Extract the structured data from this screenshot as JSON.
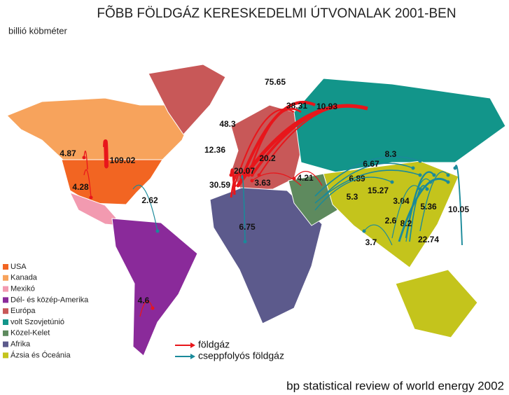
{
  "title": "FÕBB FÖLDGÁZ KERESKEDELMI ÚTVONALAK 2001-BEN",
  "unit": "billió köbméter",
  "source": "bp statistical review of world energy 2002",
  "regions": [
    {
      "name": "USA",
      "color": "#f26522"
    },
    {
      "name": "Kanada",
      "color": "#f7a35c"
    },
    {
      "name": "Mexikó",
      "color": "#f29ab0"
    },
    {
      "name": "Dél- és közép-Amerika",
      "color": "#8a2a9a"
    },
    {
      "name": "Európa",
      "color": "#c85858"
    },
    {
      "name": "volt Szovjetúnió",
      "color": "#12958a"
    },
    {
      "name": "Közel-Kelet",
      "color": "#5e8a5e"
    },
    {
      "name": "Afrika",
      "color": "#5c5a8c"
    },
    {
      "name": "Ázsia és Óceánia",
      "color": "#c4c41c"
    }
  ],
  "flow_types": [
    {
      "name": "földgáz",
      "color": "#e8161b"
    },
    {
      "name": "cseppfolyós földgáz",
      "color": "#1a8a9a"
    }
  ],
  "flows": [
    {
      "value": 75.65,
      "color": "#e8161b"
    },
    {
      "value": 48.3,
      "color": "#e8161b"
    },
    {
      "value": 12.36,
      "color": "#e8161b"
    },
    {
      "value": 38.31,
      "color": "#e8161b"
    },
    {
      "value": 10.93,
      "color": "#e8161b"
    },
    {
      "value": 20.2,
      "color": "#e8161b"
    },
    {
      "value": 20.07,
      "color": "#e8161b"
    },
    {
      "value": 30.59,
      "color": "#e8161b"
    },
    {
      "value": 3.63,
      "color": "#e8161b"
    },
    {
      "value": 4.21,
      "color": "#e8161b"
    },
    {
      "value": 109.02,
      "color": "#e8161b"
    },
    {
      "value": 4.87,
      "color": "#e8161b"
    },
    {
      "value": 4.28,
      "color": "#e8161b"
    },
    {
      "value": 2.62,
      "color": "#1a8a9a"
    },
    {
      "value": 6.75,
      "color": "#1a8a9a"
    },
    {
      "value": 8.3,
      "color": "#1a8a9a"
    },
    {
      "value": 6.67,
      "color": "#1a8a9a"
    },
    {
      "value": 6.89,
      "color": "#1a8a9a"
    },
    {
      "value": 5.3,
      "color": "#1a8a9a"
    },
    {
      "value": 15.27,
      "color": "#1a8a9a"
    },
    {
      "value": 3.04,
      "color": "#1a8a9a"
    },
    {
      "value": 5.36,
      "color": "#1a8a9a"
    },
    {
      "value": 10.05,
      "color": "#1a8a9a"
    },
    {
      "value": 2.6,
      "color": "#1a8a9a"
    },
    {
      "value": 8.2,
      "color": "#1a8a9a"
    },
    {
      "value": 3.7,
      "color": "#1a8a9a"
    },
    {
      "value": 22.74,
      "color": "#1a8a9a"
    },
    {
      "value": 4.6,
      "color": "#e8161b"
    }
  ]
}
